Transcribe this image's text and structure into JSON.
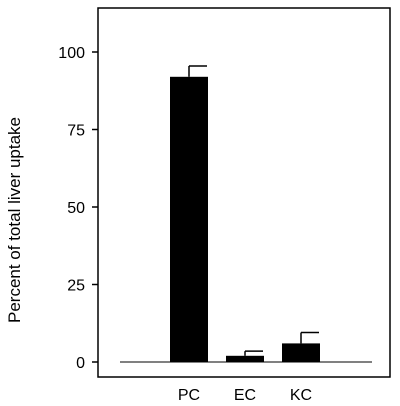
{
  "chart_data": {
    "type": "bar",
    "title": "",
    "xlabel": "",
    "ylabel": "Percent of total liver uptake",
    "categories": [
      "PC",
      "EC",
      "KC"
    ],
    "values": [
      92,
      2,
      6
    ],
    "error_bars": [
      3.5,
      1.5,
      3.5
    ],
    "ylim": [
      0,
      100
    ],
    "yticks": [
      "0",
      "25",
      "50",
      "75",
      "100"
    ],
    "bar_color": "#000000",
    "grid": false,
    "legend": "none"
  }
}
